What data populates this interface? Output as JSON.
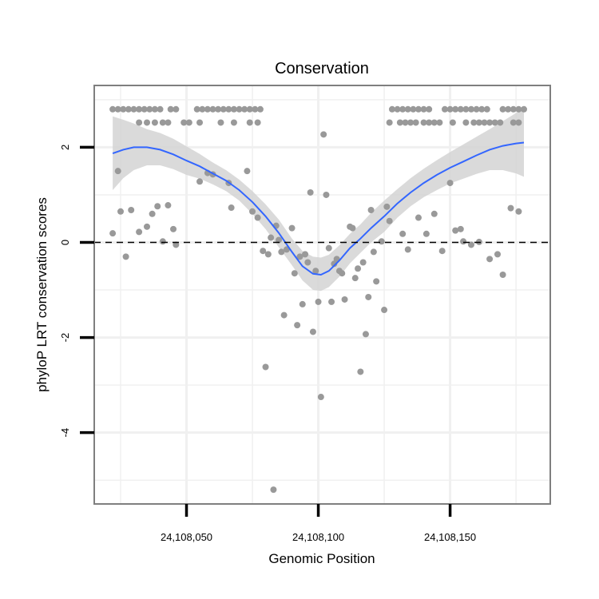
{
  "chart_data": {
    "type": "scatter",
    "title": "Conservation",
    "xlabel": "Genomic Position",
    "ylabel": "phyloP LRT conservation scores",
    "xlim": [
      24108015,
      24108188
    ],
    "ylim": [
      -5.5,
      3.3
    ],
    "x_ticks": [
      24108050,
      24108100,
      24108150
    ],
    "x_tick_labels": [
      "24,108,050",
      "24,108,100",
      "24,108,150"
    ],
    "y_ticks": [
      2,
      0,
      -2,
      -4
    ],
    "y_tick_labels": [
      "2",
      "0",
      "-2",
      "-4"
    ],
    "x_minor_grid": [
      24108025,
      24108075,
      24108125,
      24108175
    ],
    "y_minor_grid": [
      3,
      1,
      -1,
      -3,
      -5
    ],
    "reference_line": {
      "y": 0,
      "style": "dashed",
      "color": "#000000"
    },
    "colors": {
      "points": "#999999",
      "smooth": "#3366ff",
      "ribbon": "#d3d3d3",
      "grid": "#f0f0f0",
      "border": "#7f7f7f"
    },
    "points": [
      [
        24108022,
        2.8
      ],
      [
        24108024,
        2.8
      ],
      [
        24108026,
        2.8
      ],
      [
        24108028,
        2.8
      ],
      [
        24108030,
        2.8
      ],
      [
        24108032,
        2.8
      ],
      [
        24108034,
        2.8
      ],
      [
        24108036,
        2.8
      ],
      [
        24108038,
        2.8
      ],
      [
        24108040,
        2.8
      ],
      [
        24108044,
        2.8
      ],
      [
        24108046,
        2.8
      ],
      [
        24108054,
        2.8
      ],
      [
        24108056,
        2.8
      ],
      [
        24108058,
        2.8
      ],
      [
        24108060,
        2.8
      ],
      [
        24108062,
        2.8
      ],
      [
        24108064,
        2.8
      ],
      [
        24108066,
        2.8
      ],
      [
        24108068,
        2.8
      ],
      [
        24108070,
        2.8
      ],
      [
        24108072,
        2.8
      ],
      [
        24108074,
        2.8
      ],
      [
        24108076,
        2.8
      ],
      [
        24108078,
        2.8
      ],
      [
        24108032,
        2.52
      ],
      [
        24108035,
        2.52
      ],
      [
        24108038,
        2.52
      ],
      [
        24108041,
        2.52
      ],
      [
        24108043,
        2.52
      ],
      [
        24108049,
        2.52
      ],
      [
        24108051,
        2.52
      ],
      [
        24108055,
        2.52
      ],
      [
        24108063,
        2.52
      ],
      [
        24108068,
        2.52
      ],
      [
        24108074,
        2.52
      ],
      [
        24108077,
        2.52
      ],
      [
        24108128,
        2.8
      ],
      [
        24108130,
        2.8
      ],
      [
        24108132,
        2.8
      ],
      [
        24108134,
        2.8
      ],
      [
        24108136,
        2.8
      ],
      [
        24108138,
        2.8
      ],
      [
        24108140,
        2.8
      ],
      [
        24108142,
        2.8
      ],
      [
        24108148,
        2.8
      ],
      [
        24108150,
        2.8
      ],
      [
        24108152,
        2.8
      ],
      [
        24108154,
        2.8
      ],
      [
        24108156,
        2.8
      ],
      [
        24108158,
        2.8
      ],
      [
        24108160,
        2.8
      ],
      [
        24108162,
        2.8
      ],
      [
        24108164,
        2.8
      ],
      [
        24108170,
        2.8
      ],
      [
        24108172,
        2.8
      ],
      [
        24108174,
        2.8
      ],
      [
        24108176,
        2.8
      ],
      [
        24108178,
        2.8
      ],
      [
        24108127,
        2.52
      ],
      [
        24108131,
        2.52
      ],
      [
        24108133,
        2.52
      ],
      [
        24108135,
        2.52
      ],
      [
        24108137,
        2.52
      ],
      [
        24108140,
        2.52
      ],
      [
        24108142,
        2.52
      ],
      [
        24108144,
        2.52
      ],
      [
        24108146,
        2.52
      ],
      [
        24108151,
        2.52
      ],
      [
        24108156,
        2.52
      ],
      [
        24108159,
        2.52
      ],
      [
        24108161,
        2.52
      ],
      [
        24108163,
        2.52
      ],
      [
        24108165,
        2.52
      ],
      [
        24108167,
        2.52
      ],
      [
        24108169,
        2.52
      ],
      [
        24108176,
        2.52
      ],
      [
        24108022,
        0.19
      ],
      [
        24108024,
        1.5
      ],
      [
        24108025,
        0.65
      ],
      [
        24108027,
        -0.3
      ],
      [
        24108029,
        0.68
      ],
      [
        24108032,
        0.22
      ],
      [
        24108035,
        0.33
      ],
      [
        24108037,
        0.6
      ],
      [
        24108039,
        0.76
      ],
      [
        24108043,
        0.78
      ],
      [
        24108045,
        0.28
      ],
      [
        24108046,
        -0.05
      ],
      [
        24108041,
        0.02
      ],
      [
        24108055,
        1.28
      ],
      [
        24108058,
        1.46
      ],
      [
        24108060,
        1.43
      ],
      [
        24108066,
        1.25
      ],
      [
        24108067,
        0.73
      ],
      [
        24108073,
        1.5
      ],
      [
        24108075,
        0.65
      ],
      [
        24108077,
        0.52
      ],
      [
        24108079,
        -0.18
      ],
      [
        24108080,
        -2.62
      ],
      [
        24108081,
        -0.25
      ],
      [
        24108082,
        0.1
      ],
      [
        24108083,
        -5.2
      ],
      [
        24108084,
        0.35
      ],
      [
        24108085,
        0.05
      ],
      [
        24108086,
        -0.2
      ],
      [
        24108087,
        -1.53
      ],
      [
        24108088,
        -0.15
      ],
      [
        24108090,
        0.3
      ],
      [
        24108091,
        -0.65
      ],
      [
        24108092,
        -1.74
      ],
      [
        24108093,
        -0.3
      ],
      [
        24108094,
        -1.3
      ],
      [
        24108095,
        -0.25
      ],
      [
        24108096,
        -0.42
      ],
      [
        24108097,
        1.05
      ],
      [
        24108098,
        -1.88
      ],
      [
        24108099,
        -0.6
      ],
      [
        24108100,
        -1.25
      ],
      [
        24108101,
        -3.25
      ],
      [
        24108102,
        2.27
      ],
      [
        24108103,
        1.0
      ],
      [
        24108104,
        -0.12
      ],
      [
        24108105,
        -1.25
      ],
      [
        24108106,
        -0.45
      ],
      [
        24108107,
        -0.35
      ],
      [
        24108108,
        -0.6
      ],
      [
        24108109,
        -0.65
      ],
      [
        24108110,
        -1.2
      ],
      [
        24108112,
        0.33
      ],
      [
        24108113,
        0.3
      ],
      [
        24108114,
        -0.75
      ],
      [
        24108115,
        -0.55
      ],
      [
        24108116,
        -2.72
      ],
      [
        24108117,
        -0.42
      ],
      [
        24108118,
        -1.93
      ],
      [
        24108119,
        -1.15
      ],
      [
        24108120,
        0.68
      ],
      [
        24108121,
        -0.2
      ],
      [
        24108122,
        -0.82
      ],
      [
        24108124,
        0.02
      ],
      [
        24108125,
        -1.42
      ],
      [
        24108126,
        0.75
      ],
      [
        24108127,
        0.45
      ],
      [
        24108132,
        0.18
      ],
      [
        24108134,
        -0.15
      ],
      [
        24108138,
        0.52
      ],
      [
        24108141,
        0.18
      ],
      [
        24108144,
        0.6
      ],
      [
        24108147,
        -0.18
      ],
      [
        24108150,
        1.25
      ],
      [
        24108152,
        0.25
      ],
      [
        24108154,
        0.28
      ],
      [
        24108155,
        0.02
      ],
      [
        24108158,
        -0.05
      ],
      [
        24108161,
        0.01
      ],
      [
        24108165,
        -0.35
      ],
      [
        24108168,
        -0.25
      ],
      [
        24108170,
        -0.68
      ],
      [
        24108173,
        0.72
      ],
      [
        24108176,
        0.65
      ],
      [
        24108174,
        2.52
      ]
    ],
    "smooth": [
      [
        24108022,
        1.87
      ],
      [
        24108026,
        1.95
      ],
      [
        24108030,
        2.0
      ],
      [
        24108035,
        2.0
      ],
      [
        24108040,
        1.95
      ],
      [
        24108045,
        1.85
      ],
      [
        24108050,
        1.72
      ],
      [
        24108055,
        1.6
      ],
      [
        24108060,
        1.45
      ],
      [
        24108065,
        1.3
      ],
      [
        24108070,
        1.1
      ],
      [
        24108075,
        0.85
      ],
      [
        24108080,
        0.55
      ],
      [
        24108085,
        0.2
      ],
      [
        24108090,
        -0.2
      ],
      [
        24108094,
        -0.5
      ],
      [
        24108098,
        -0.66
      ],
      [
        24108101,
        -0.68
      ],
      [
        24108104,
        -0.6
      ],
      [
        24108108,
        -0.38
      ],
      [
        24108112,
        -0.12
      ],
      [
        24108116,
        0.08
      ],
      [
        24108120,
        0.3
      ],
      [
        24108125,
        0.55
      ],
      [
        24108130,
        0.82
      ],
      [
        24108135,
        1.05
      ],
      [
        24108140,
        1.25
      ],
      [
        24108145,
        1.42
      ],
      [
        24108150,
        1.57
      ],
      [
        24108155,
        1.7
      ],
      [
        24108160,
        1.83
      ],
      [
        24108165,
        1.95
      ],
      [
        24108170,
        2.03
      ],
      [
        24108175,
        2.08
      ],
      [
        24108178,
        2.1
      ]
    ],
    "ribbon_upper": [
      [
        24108022,
        2.65
      ],
      [
        24108026,
        2.58
      ],
      [
        24108030,
        2.5
      ],
      [
        24108035,
        2.38
      ],
      [
        24108040,
        2.3
      ],
      [
        24108045,
        2.18
      ],
      [
        24108050,
        2.02
      ],
      [
        24108055,
        1.86
      ],
      [
        24108060,
        1.68
      ],
      [
        24108065,
        1.52
      ],
      [
        24108070,
        1.32
      ],
      [
        24108075,
        1.08
      ],
      [
        24108080,
        0.8
      ],
      [
        24108085,
        0.48
      ],
      [
        24108090,
        0.08
      ],
      [
        24108094,
        -0.18
      ],
      [
        24108098,
        -0.3
      ],
      [
        24108101,
        -0.32
      ],
      [
        24108104,
        -0.26
      ],
      [
        24108108,
        -0.06
      ],
      [
        24108112,
        0.18
      ],
      [
        24108116,
        0.38
      ],
      [
        24108120,
        0.62
      ],
      [
        24108125,
        0.88
      ],
      [
        24108130,
        1.12
      ],
      [
        24108135,
        1.35
      ],
      [
        24108140,
        1.55
      ],
      [
        24108145,
        1.73
      ],
      [
        24108150,
        1.9
      ],
      [
        24108155,
        2.06
      ],
      [
        24108160,
        2.22
      ],
      [
        24108165,
        2.38
      ],
      [
        24108170,
        2.55
      ],
      [
        24108175,
        2.72
      ],
      [
        24108178,
        2.82
      ]
    ],
    "ribbon_lower": [
      [
        24108022,
        1.1
      ],
      [
        24108026,
        1.35
      ],
      [
        24108030,
        1.52
      ],
      [
        24108035,
        1.62
      ],
      [
        24108040,
        1.62
      ],
      [
        24108045,
        1.54
      ],
      [
        24108050,
        1.42
      ],
      [
        24108055,
        1.34
      ],
      [
        24108060,
        1.22
      ],
      [
        24108065,
        1.08
      ],
      [
        24108070,
        0.88
      ],
      [
        24108075,
        0.6
      ],
      [
        24108080,
        0.28
      ],
      [
        24108085,
        -0.1
      ],
      [
        24108090,
        -0.48
      ],
      [
        24108094,
        -0.8
      ],
      [
        24108098,
        -1.0
      ],
      [
        24108101,
        -1.02
      ],
      [
        24108104,
        -0.94
      ],
      [
        24108108,
        -0.72
      ],
      [
        24108112,
        -0.44
      ],
      [
        24108116,
        -0.22
      ],
      [
        24108120,
        0.0
      ],
      [
        24108125,
        0.22
      ],
      [
        24108130,
        0.52
      ],
      [
        24108135,
        0.76
      ],
      [
        24108140,
        0.95
      ],
      [
        24108145,
        1.1
      ],
      [
        24108150,
        1.24
      ],
      [
        24108155,
        1.34
      ],
      [
        24108160,
        1.44
      ],
      [
        24108165,
        1.52
      ],
      [
        24108170,
        1.52
      ],
      [
        24108175,
        1.45
      ],
      [
        24108178,
        1.38
      ]
    ]
  }
}
